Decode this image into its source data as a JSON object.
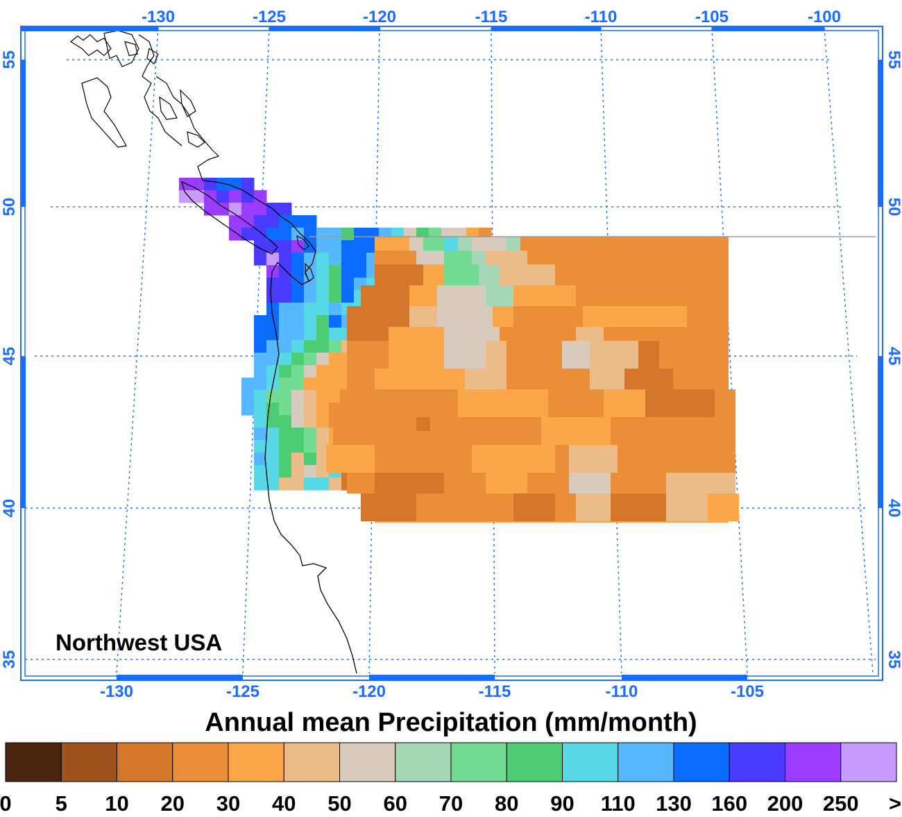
{
  "map": {
    "region_label": "Northwest USA",
    "title": "Annual mean Precipitation (mm/month)",
    "grid_color": "#1a6dff",
    "frame_color": "#1a6dff",
    "top_lon_labels": [
      "-130",
      "-125",
      "-120",
      "-115",
      "-110",
      "-105",
      "-100"
    ],
    "bottom_lon_labels": [
      "-130",
      "-125",
      "-120",
      "-115",
      "-110",
      "-105"
    ],
    "left_lat_labels": [
      "55",
      "50",
      "45",
      "40",
      "35"
    ],
    "right_lat_labels": [
      "55",
      "50",
      "45",
      "40",
      "35"
    ]
  },
  "colorbar": {
    "bins": [
      {
        "color": "#4a2510"
      },
      {
        "color": "#a0521c"
      },
      {
        "color": "#d4762c"
      },
      {
        "color": "#ea8f38"
      },
      {
        "color": "#fca64a"
      },
      {
        "color": "#ebbb88"
      },
      {
        "color": "#d8cbbd"
      },
      {
        "color": "#a6d8b8"
      },
      {
        "color": "#72dc92"
      },
      {
        "color": "#4ccd74"
      },
      {
        "color": "#56d8e6"
      },
      {
        "color": "#56b8ff"
      },
      {
        "color": "#0c6cff"
      },
      {
        "color": "#4a3aff"
      },
      {
        "color": "#9a3cff"
      },
      {
        "color": "#c89cff"
      }
    ],
    "labels": [
      "0",
      "5",
      "10",
      "20",
      "30",
      "40",
      "50",
      "60",
      "70",
      "80",
      "90",
      "110",
      "130",
      "160",
      "200",
      "250",
      ">"
    ]
  }
}
